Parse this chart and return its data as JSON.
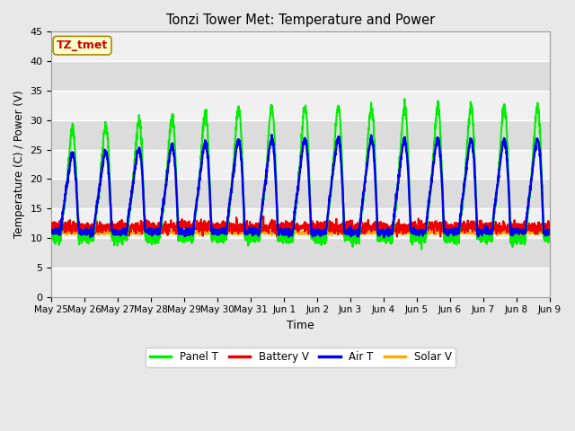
{
  "title": "Tonzi Tower Met: Temperature and Power",
  "xlabel": "Time",
  "ylabel": "Temperature (C) / Power (V)",
  "annotation": "TZ_tmet",
  "annotation_color": "#cc0000",
  "annotation_bg": "#ffffcc",
  "annotation_border": "#aa8800",
  "ylim": [
    0,
    45
  ],
  "yticks": [
    0,
    5,
    10,
    15,
    20,
    25,
    30,
    35,
    40,
    45
  ],
  "bg_color": "#e8e8e8",
  "plot_bg_light": "#f2f2f2",
  "plot_bg_dark": "#dcdcdc",
  "grid_color": "#ffffff",
  "line_colors": {
    "panel": "#00ee00",
    "battery": "#ee0000",
    "air": "#0000ee",
    "solar": "#ffaa00"
  },
  "line_widths": {
    "panel": 1.5,
    "battery": 1.5,
    "air": 1.8,
    "solar": 1.5
  },
  "legend_labels": [
    "Panel T",
    "Battery V",
    "Air T",
    "Solar V"
  ],
  "xtick_labels": [
    "May 25",
    "May 26",
    "May 27",
    "May 28",
    "May 29",
    "May 30",
    "May 31",
    "Jun 1",
    "Jun 2",
    "Jun 3",
    "Jun 4",
    "Jun 5",
    "Jun 6",
    "Jun 7",
    "Jun 8",
    "Jun 9"
  ],
  "xtick_positions": [
    0,
    1,
    2,
    3,
    4,
    5,
    6,
    7,
    8,
    9,
    10,
    11,
    12,
    13,
    14,
    15
  ]
}
